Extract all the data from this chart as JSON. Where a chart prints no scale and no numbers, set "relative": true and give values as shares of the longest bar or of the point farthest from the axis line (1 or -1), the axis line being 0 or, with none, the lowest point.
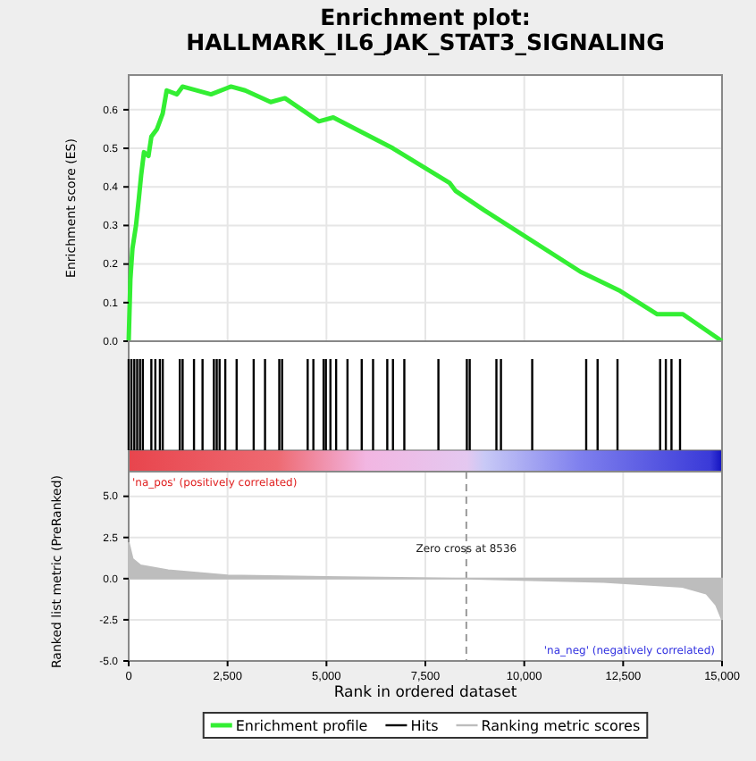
{
  "chart_data": [
    {
      "type": "line",
      "title": "Enrichment plot:\nHALLMARK_IL6_JAK_STAT3_SIGNALING",
      "ylabel": "Enrichment score (ES)",
      "xlim": [
        0,
        15000
      ],
      "ylim": [
        0,
        0.69
      ],
      "yticks": [
        {
          "value": 0,
          "label": "0.0"
        },
        {
          "value": 0.1,
          "label": "0.1"
        },
        {
          "value": 0.2,
          "label": "0.2"
        },
        {
          "value": 0.3,
          "label": "0.3"
        },
        {
          "value": 0.4,
          "label": "0.4"
        },
        {
          "value": 0.5,
          "label": "0.5"
        },
        {
          "value": 0.6,
          "label": "0.6"
        }
      ],
      "xticks": [
        0,
        2500,
        5000,
        7500,
        10000,
        12500,
        15000
      ],
      "tick_labels": "y",
      "grid": true,
      "series": [
        {
          "name": "Enrichment profile",
          "color": "#33ee33",
          "x": [
            0,
            43,
            95,
            185,
            257,
            315,
            387,
            500,
            573,
            716,
            860,
            961,
            1220,
            1362,
            2082,
            2586,
            2944,
            3590,
            3950,
            4810,
            5172,
            6681,
            8116,
            8260,
            8980,
            11422,
            12427,
            13362,
            14009,
            15000
          ],
          "values": [
            0,
            0.16,
            0.24,
            0.3,
            0.37,
            0.43,
            0.49,
            0.48,
            0.53,
            0.55,
            0.59,
            0.65,
            0.64,
            0.66,
            0.64,
            0.66,
            0.65,
            0.62,
            0.63,
            0.57,
            0.58,
            0.5,
            0.41,
            0.39,
            0.34,
            0.18,
            0.13,
            0.07,
            0.07,
            0
          ]
        }
      ]
    },
    {
      "type": "bar",
      "relative": true,
      "xlim": [
        0,
        15000
      ],
      "tick_labels": false,
      "series": [
        {
          "name": "Hits",
          "color": "#000000",
          "x": [
            0,
            70,
            142,
            214,
            286,
            358,
            573,
            674,
            789,
            861,
            1292,
            1364,
            1651,
            1867,
            2154,
            2226,
            2298,
            2442,
            2729,
            3160,
            3447,
            3807,
            3879,
            4525,
            4669,
            4927,
            4985,
            5100,
            5244,
            5531,
            5891,
            6178,
            6537,
            6681,
            6968,
            7830,
            8549,
            8621,
            9296,
            9411,
            10201,
            11566,
            11854,
            12357,
            13435,
            13579,
            13722,
            13938
          ],
          "values": [
            1,
            1,
            1,
            1,
            1,
            1,
            1,
            1,
            1,
            1,
            1,
            1,
            1,
            1,
            1,
            1,
            1,
            1,
            1,
            1,
            1,
            1,
            1,
            1,
            1,
            1,
            1,
            1,
            1,
            1,
            1,
            1,
            1,
            1,
            1,
            1,
            1,
            1,
            1,
            1,
            1,
            1,
            1,
            1,
            1,
            1,
            1,
            1
          ]
        }
      ]
    },
    {
      "type": "area",
      "xlabel": "Rank in ordered dataset",
      "ylabel": "Ranked list metric (PreRanked)",
      "xlim": [
        0,
        15000
      ],
      "ylim": [
        -5,
        6.5
      ],
      "xticks": [
        0,
        {
          "value": 2500,
          "label": "2,500"
        },
        {
          "value": 5000,
          "label": "5,000"
        },
        {
          "value": 7500,
          "label": "7,500"
        },
        {
          "value": 10000,
          "label": "10,000"
        },
        {
          "value": 12500,
          "label": "12,500"
        },
        {
          "value": 15000,
          "label": "15,000"
        }
      ],
      "yticks": [
        {
          "value": -5,
          "label": "-5.0"
        },
        {
          "value": -2.5,
          "label": "-2.5"
        },
        {
          "value": 0,
          "label": "0.0"
        },
        {
          "value": 2.5,
          "label": "2.5"
        },
        {
          "value": 5,
          "label": "5.0"
        }
      ],
      "grid": true,
      "legend": "bottom",
      "series": [
        {
          "name": "Ranking metric scores",
          "color": "#bdbdbd",
          "x": [
            0,
            100,
            300,
            1000,
            2500,
            5000,
            8536,
            12000,
            14000,
            14600,
            14850,
            15000
          ],
          "values": [
            2.2,
            1.2,
            0.8,
            0.5,
            0.2,
            0.1,
            0,
            -0.2,
            -0.5,
            -0.9,
            -1.6,
            -2.5
          ]
        }
      ],
      "ref_lines": [
        {
          "axis": "x",
          "value": 8536,
          "label": "Zero cross at 8536",
          "line_style": "dashed",
          "color": "#999999"
        }
      ],
      "annotations": [
        "'na_pos' (positively correlated)",
        "'na_neg' (negatively correlated)"
      ]
    }
  ]
}
